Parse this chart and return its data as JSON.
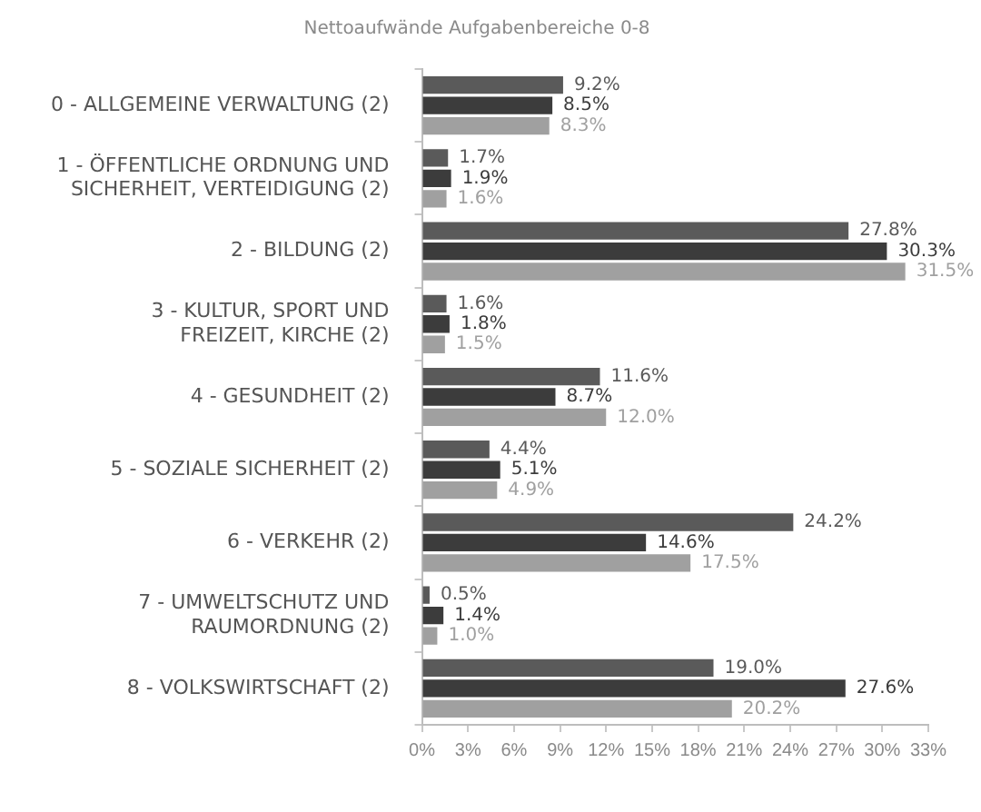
{
  "chart_data": {
    "type": "bar",
    "orientation": "horizontal",
    "title": "Nettoaufwände Aufgabenbereiche 0-8",
    "categories": [
      "0 - ALLGEMEINE VERWALTUNG (2)",
      "1 - ÖFFENTLICHE ORDNUNG UND SICHERHEIT, VERTEIDIGUNG (2)",
      "2 - BILDUNG (2)",
      "3 - KULTUR, SPORT UND FREIZEIT, KIRCHE (2)",
      "4 - GESUNDHEIT (2)",
      "5 - SOZIALE SICHERHEIT (2)",
      "6 - VERKEHR (2)",
      "7 - UMWELTSCHUTZ UND RAUMORDNUNG (2)",
      "8 - VOLKSWIRTSCHAFT (2)"
    ],
    "series": [
      {
        "color": "#5a5a5a",
        "values": [
          9.2,
          1.7,
          27.8,
          1.6,
          11.6,
          4.4,
          24.2,
          0.5,
          19.0
        ],
        "value_labels": [
          "9.2%",
          "1.7%",
          "27.8%",
          "1.6%",
          "11.6%",
          "4.4%",
          "24.2%",
          "0.5%",
          "19.0%"
        ]
      },
      {
        "color": "#3c3c3c",
        "values": [
          8.5,
          1.9,
          30.3,
          1.8,
          8.7,
          5.1,
          14.6,
          1.4,
          27.6
        ],
        "value_labels": [
          "8.5%",
          "1.9%",
          "30.3%",
          "1.8%",
          "8.7%",
          "5.1%",
          "14.6%",
          "1.4%",
          "27.6%"
        ]
      },
      {
        "color": "#a0a0a0",
        "values": [
          8.3,
          1.6,
          31.5,
          1.5,
          12.0,
          4.9,
          17.5,
          1.0,
          20.2
        ],
        "value_labels": [
          "8.3%",
          "1.6%",
          "31.5%",
          "1.5%",
          "12.0%",
          "4.9%",
          "17.5%",
          "1.0%",
          "20.2%"
        ]
      }
    ],
    "xlim": [
      0,
      33
    ],
    "xticks": [
      {
        "value": 0,
        "label": "0%"
      },
      {
        "value": 3,
        "label": "3%"
      },
      {
        "value": 6,
        "label": "6%"
      },
      {
        "value": 9,
        "label": "9%"
      },
      {
        "value": 12,
        "label": "12%"
      },
      {
        "value": 15,
        "label": "15%"
      },
      {
        "value": 18,
        "label": "18%"
      },
      {
        "value": 21,
        "label": "21%"
      },
      {
        "value": 24,
        "label": "24%"
      },
      {
        "value": 27,
        "label": "27%"
      },
      {
        "value": 30,
        "label": "30%"
      },
      {
        "value": 33,
        "label": "33%"
      }
    ],
    "grid": false,
    "legend": false
  }
}
